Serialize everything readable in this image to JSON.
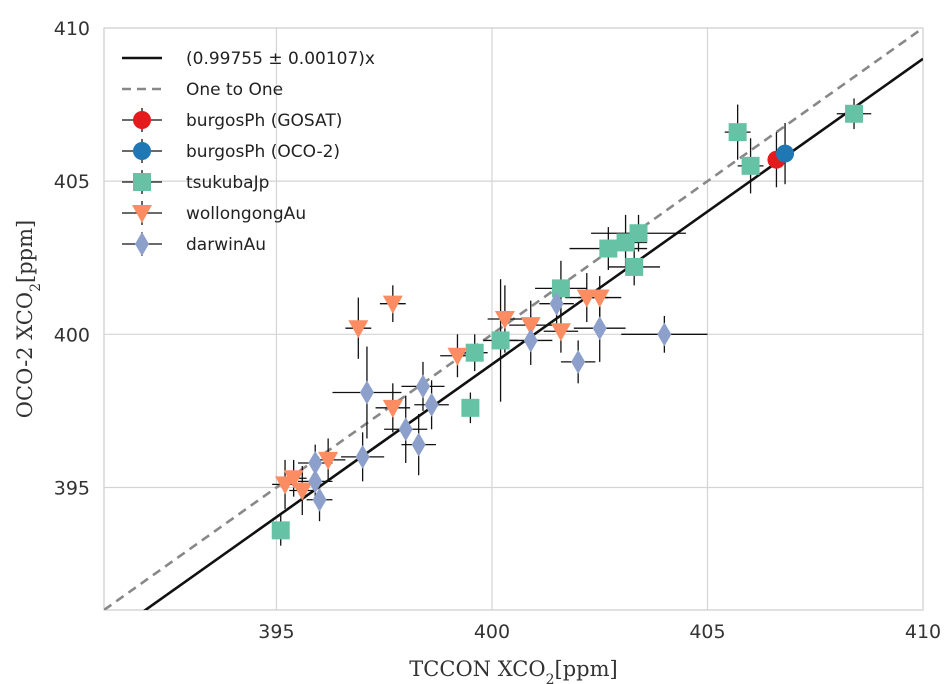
{
  "chart_data": {
    "type": "scatter",
    "xlabel": "TCCON XCO",
    "xlabel_sub": "2",
    "xlabel_unit": "[ppm]",
    "ylabel": "OCO-2 XCO",
    "ylabel_sub": "2",
    "ylabel_unit": "[ppm]",
    "xlim": [
      391,
      410
    ],
    "ylim": [
      391,
      410
    ],
    "xticks": [
      395,
      400,
      405,
      410
    ],
    "yticks": [
      395,
      400,
      405,
      410
    ],
    "grid": true,
    "legend_position": "top-left",
    "fit_line": {
      "label": "(0.99755 ± 0.00107)x",
      "slope": 0.99755,
      "color": "#111111"
    },
    "one_to_one": {
      "label": "One to One",
      "slope": 1.0,
      "color": "#888888"
    },
    "series": [
      {
        "name": "burgosPh (GOSAT)",
        "marker": "circle",
        "color": "#e41a1c",
        "points": [
          {
            "x": 406.6,
            "y": 405.7,
            "xerr": 0.2,
            "yerr": 0.9
          }
        ]
      },
      {
        "name": "burgosPh (OCO-2)",
        "marker": "circle",
        "color": "#1f78b4",
        "points": [
          {
            "x": 406.8,
            "y": 405.9,
            "xerr": 0.2,
            "yerr": 1.0
          }
        ]
      },
      {
        "name": "tsukubaJp",
        "marker": "square",
        "color": "#66c2a5",
        "points": [
          {
            "x": 395.1,
            "y": 393.6,
            "xerr": 0.15,
            "yerr": 0.5
          },
          {
            "x": 399.5,
            "y": 397.6,
            "xerr": 0.2,
            "yerr": 0.5
          },
          {
            "x": 399.6,
            "y": 399.4,
            "xerr": 0.3,
            "yerr": 0.6
          },
          {
            "x": 400.2,
            "y": 399.8,
            "xerr": 0.4,
            "yerr": 2.0
          },
          {
            "x": 401.6,
            "y": 401.5,
            "xerr": 0.6,
            "yerr": 0.9
          },
          {
            "x": 402.7,
            "y": 402.8,
            "xerr": 0.9,
            "yerr": 0.7
          },
          {
            "x": 403.1,
            "y": 403.0,
            "xerr": 0.5,
            "yerr": 0.9
          },
          {
            "x": 403.4,
            "y": 403.3,
            "xerr": 1.1,
            "yerr": 0.6
          },
          {
            "x": 403.3,
            "y": 402.2,
            "xerr": 0.6,
            "yerr": 0.6
          },
          {
            "x": 405.7,
            "y": 406.6,
            "xerr": 0.3,
            "yerr": 0.9
          },
          {
            "x": 406.0,
            "y": 405.5,
            "xerr": 0.3,
            "yerr": 0.9
          },
          {
            "x": 408.4,
            "y": 407.2,
            "xerr": 0.4,
            "yerr": 0.5
          }
        ]
      },
      {
        "name": "wollongongAu",
        "marker": "triangle-down",
        "color": "#fc8d62",
        "points": [
          {
            "x": 395.2,
            "y": 395.1,
            "xerr": 0.3,
            "yerr": 0.8
          },
          {
            "x": 395.4,
            "y": 395.3,
            "xerr": 0.3,
            "yerr": 0.6
          },
          {
            "x": 395.6,
            "y": 394.9,
            "xerr": 0.3,
            "yerr": 0.8
          },
          {
            "x": 396.2,
            "y": 395.9,
            "xerr": 0.4,
            "yerr": 0.7
          },
          {
            "x": 396.9,
            "y": 400.2,
            "xerr": 0.3,
            "yerr": 1.0
          },
          {
            "x": 397.7,
            "y": 401.0,
            "xerr": 0.3,
            "yerr": 0.6
          },
          {
            "x": 397.7,
            "y": 397.6,
            "xerr": 0.4,
            "yerr": 0.8
          },
          {
            "x": 399.2,
            "y": 399.3,
            "xerr": 0.4,
            "yerr": 0.7
          },
          {
            "x": 400.3,
            "y": 400.5,
            "xerr": 0.4,
            "yerr": 1.1
          },
          {
            "x": 400.9,
            "y": 400.3,
            "xerr": 0.5,
            "yerr": 0.8
          },
          {
            "x": 401.6,
            "y": 400.1,
            "xerr": 0.4,
            "yerr": 0.7
          },
          {
            "x": 402.2,
            "y": 401.2,
            "xerr": 0.5,
            "yerr": 0.8
          },
          {
            "x": 402.5,
            "y": 401.2,
            "xerr": 0.5,
            "yerr": 0.7
          }
        ]
      },
      {
        "name": "darwinAu",
        "marker": "diamond",
        "color": "#8da0cb",
        "points": [
          {
            "x": 395.9,
            "y": 395.8,
            "xerr": 0.4,
            "yerr": 0.6
          },
          {
            "x": 395.9,
            "y": 395.2,
            "xerr": 0.4,
            "yerr": 0.7
          },
          {
            "x": 396.0,
            "y": 394.6,
            "xerr": 0.3,
            "yerr": 0.7
          },
          {
            "x": 397.0,
            "y": 396.0,
            "xerr": 0.5,
            "yerr": 0.8
          },
          {
            "x": 397.1,
            "y": 398.1,
            "xerr": 0.8,
            "yerr": 1.5
          },
          {
            "x": 398.0,
            "y": 396.9,
            "xerr": 0.5,
            "yerr": 1.1
          },
          {
            "x": 398.3,
            "y": 396.4,
            "xerr": 0.4,
            "yerr": 1.0
          },
          {
            "x": 398.4,
            "y": 398.3,
            "xerr": 0.5,
            "yerr": 0.8
          },
          {
            "x": 398.6,
            "y": 397.7,
            "xerr": 0.4,
            "yerr": 0.8
          },
          {
            "x": 400.9,
            "y": 399.8,
            "xerr": 0.5,
            "yerr": 0.8
          },
          {
            "x": 401.5,
            "y": 401.0,
            "xerr": 0.4,
            "yerr": 0.7
          },
          {
            "x": 402.0,
            "y": 399.1,
            "xerr": 0.4,
            "yerr": 0.7
          },
          {
            "x": 402.5,
            "y": 400.2,
            "xerr": 0.6,
            "yerr": 1.1
          },
          {
            "x": 404.0,
            "y": 400.0,
            "xerr": 1.0,
            "yerr": 0.6
          }
        ]
      }
    ]
  }
}
